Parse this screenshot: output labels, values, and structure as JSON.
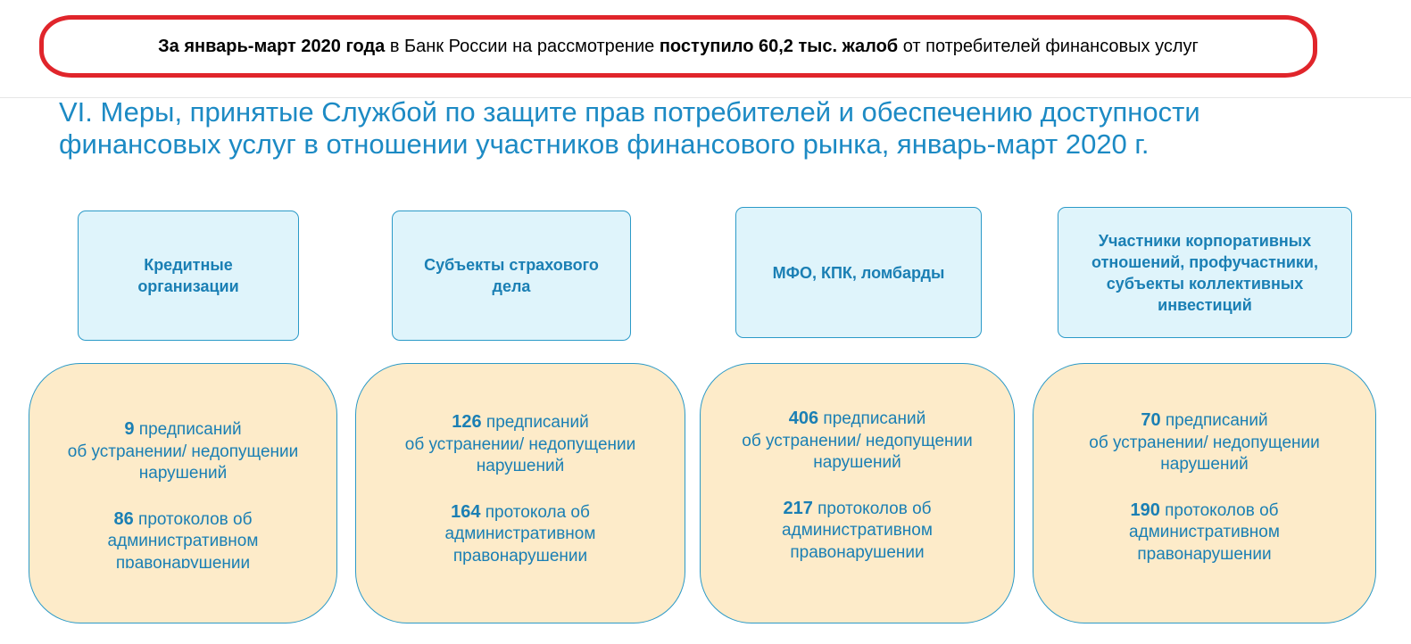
{
  "banner": {
    "part1_bold": "За январь-март 2020 года",
    "part2": " в Банк России на рассмотрение ",
    "part3_bold": "поступило 60,2 тыс. жалоб",
    "part4": " от потребителей финансовых услуг"
  },
  "title_line1": "VI. Меры, принятые Службой по защите прав потребителей и обеспечению доступности",
  "title_line2": "финансовых услуг в отношении участников финансового рынка, январь-март 2020 г.",
  "categories": [
    {
      "line1": "Кредитные",
      "line2": "организации"
    },
    {
      "line1": "Субъекты страхового",
      "line2": "дела"
    },
    {
      "line1": "МФО, КПК, ломбарды"
    },
    {
      "line1": "Участники корпоративных",
      "line2": "отношений, профучастники,",
      "line3": "субъекты коллективных",
      "line4": "инвестиций"
    }
  ],
  "cards": [
    {
      "prescriptions": "9",
      "prescriptions_text": " предписаний",
      "line2": "об устранении/ недопущении",
      "line3": "нарушений",
      "protocols": "86",
      "protocols_text": " протоколов об",
      "line5": "административном",
      "line6": "правонарушении"
    },
    {
      "prescriptions": "126",
      "prescriptions_text": " предписаний",
      "line2": "об устранении/ недопущении",
      "line3": "нарушений",
      "protocols": "164",
      "protocols_text": " протокола об",
      "line5": "административном",
      "line6": "правонарушении"
    },
    {
      "prescriptions": "406",
      "prescriptions_text": " предписаний",
      "line2": "об устранении/ недопущении",
      "line3": "нарушений",
      "protocols": "217",
      "protocols_text": " протоколов об",
      "line5": "административном",
      "line6": "правонарушении"
    },
    {
      "prescriptions": "70",
      "prescriptions_text": " предписаний",
      "line2": "об устранении/ недопущении",
      "line3": "нарушений",
      "protocols": "190",
      "protocols_text": " протоколов об",
      "line5": "административном",
      "line6": "правонарушении"
    }
  ],
  "colors": {
    "accent": "#1c8ac4",
    "banner_border": "#e0252b",
    "category_bg": "#dff4fb",
    "card_bg": "#fdebc9"
  }
}
